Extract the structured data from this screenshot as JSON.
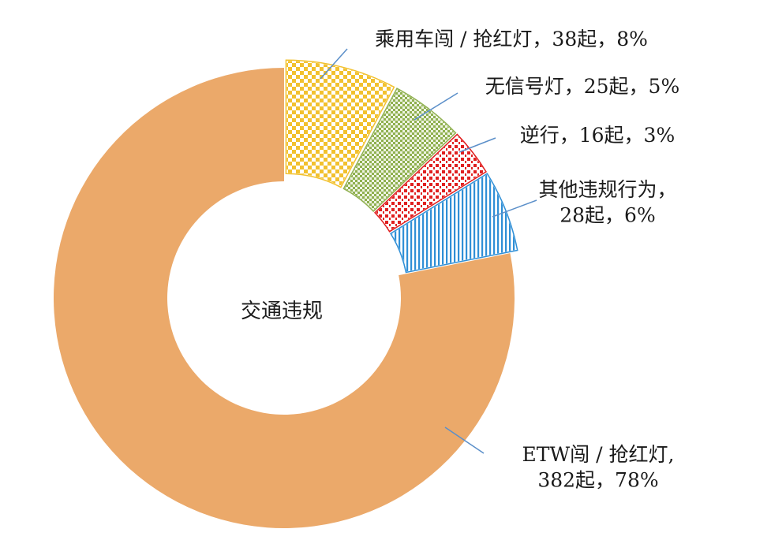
{
  "chart_data": {
    "type": "pie",
    "variant": "donut",
    "center_label": "交通违规",
    "slices": [
      {
        "name": "乘用车闯 / 抢红灯",
        "count": 38,
        "percent": 8,
        "value_text": "38起",
        "percent_text": "8%",
        "label_lines": [
          "乘用车闯 / 抢红灯，38起，8%"
        ],
        "color": "#f2c12e",
        "pattern": "checker"
      },
      {
        "name": "无信号灯",
        "count": 25,
        "percent": 5,
        "value_text": "25起",
        "percent_text": "5%",
        "label_lines": [
          "无信号灯，25起，5%"
        ],
        "color": "#8fb04f",
        "pattern": "fine-checker"
      },
      {
        "name": "逆行",
        "count": 16,
        "percent": 3,
        "value_text": "16起",
        "percent_text": "3%",
        "label_lines": [
          "逆行，16起，3%"
        ],
        "color": "#e02020",
        "pattern": "dots"
      },
      {
        "name": "其他违规行为",
        "count": 28,
        "percent": 6,
        "value_text": "28起",
        "percent_text": "6%",
        "label_lines": [
          "其他违规行为，",
          "28起，6%"
        ],
        "color": "#2f8fd6",
        "pattern": "vertical-lines"
      },
      {
        "name": "ETW闯 / 抢红灯",
        "count": 382,
        "percent": 78,
        "value_text": "382起",
        "percent_text": "78%",
        "label_lines": [
          "ETW闯 / 抢红灯,",
          "382起，78%"
        ],
        "color": "#eba96a",
        "pattern": "solid"
      }
    ],
    "leader_line_color": "#5b8fc9",
    "title": "",
    "legend": "none"
  }
}
